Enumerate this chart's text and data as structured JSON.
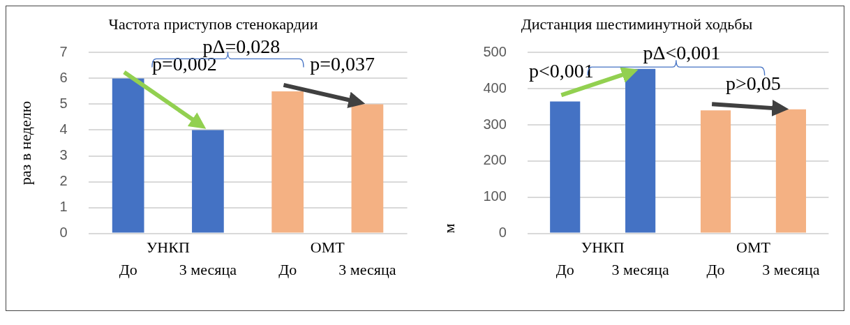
{
  "chart_data": [
    {
      "type": "bar",
      "title": "Частота приступов стенокардии",
      "ylabel": "раз в неделю",
      "categories": [
        "До",
        "3 месяца",
        "До",
        "3 месяца"
      ],
      "values": [
        6,
        4,
        5.5,
        5
      ],
      "colors": [
        "#4472c4",
        "#4472c4",
        "#f4b183",
        "#f4b183"
      ],
      "ylim": [
        0,
        7
      ],
      "yticks": [
        0,
        1,
        2,
        3,
        4,
        5,
        6,
        7
      ],
      "grid": "y",
      "legend": false,
      "annotations": [
        "УНКП",
        "ОМТ",
        "pΔ=0,028",
        "p=0,002",
        "p=0,037"
      ]
    },
    {
      "type": "bar",
      "title": "Дистанция шестиминутной ходьбы",
      "ylabel": "м",
      "categories": [
        "До",
        "3 месяца",
        "До",
        "3 месяца"
      ],
      "values": [
        365,
        455,
        340,
        343
      ],
      "colors": [
        "#4472c4",
        "#4472c4",
        "#f4b183",
        "#f4b183"
      ],
      "ylim": [
        0,
        500
      ],
      "yticks": [
        0,
        100,
        200,
        300,
        400,
        500
      ],
      "grid": "y",
      "legend": false,
      "annotations": [
        "УНКП",
        "ОМТ",
        "pΔ<0,001",
        "p<0,001",
        "p>0,05"
      ]
    }
  ]
}
